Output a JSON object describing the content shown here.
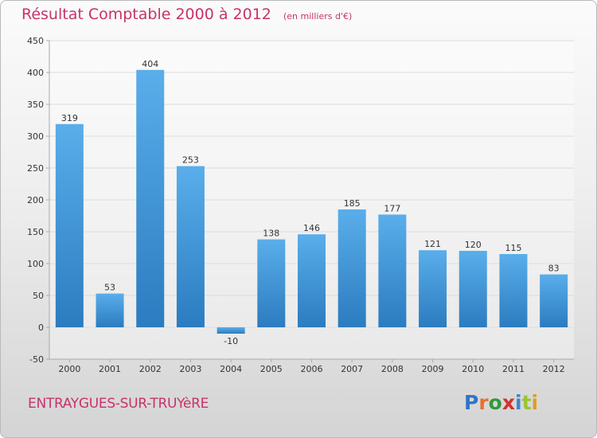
{
  "title": "Résultat Comptable 2000 à 2012",
  "subtitle": "(en milliers d'€)",
  "town": "ENTRAYGUES-SUR-TRUYèRE",
  "logo": {
    "letters": [
      "P",
      "r",
      "o",
      "x",
      "i",
      "t",
      "i"
    ],
    "colors": [
      "#2f74c8",
      "#e8722a",
      "#2f9a3c",
      "#d3302f",
      "#3a86d0",
      "#9bc431",
      "#e09a2a"
    ]
  },
  "colors": {
    "bar_light": "#5aaeea",
    "bar_dark": "#2b7cc0",
    "grid": "#dcdcdc",
    "axis": "#aaaaaa",
    "title": "#c8326b"
  },
  "chart_data": {
    "type": "bar",
    "title": "Résultat Comptable 2000 à 2012",
    "subtitle": "(en milliers d'€)",
    "categories": [
      "2000",
      "2001",
      "2002",
      "2003",
      "2004",
      "2005",
      "2006",
      "2007",
      "2008",
      "2009",
      "2010",
      "2011",
      "2012"
    ],
    "values": [
      319,
      53,
      404,
      253,
      -10,
      138,
      146,
      185,
      177,
      121,
      120,
      115,
      83
    ],
    "ylim": [
      -50,
      450
    ],
    "yticks": [
      -50,
      0,
      50,
      100,
      150,
      200,
      250,
      300,
      350,
      400,
      450
    ],
    "grid": true,
    "xlabel": "",
    "ylabel": ""
  }
}
